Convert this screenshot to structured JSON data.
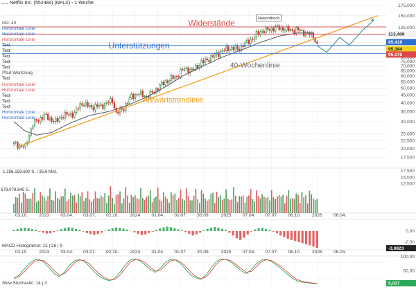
{
  "window": {
    "title": "Netflix Inc. (552484) (NFLX) - 1 Woche"
  },
  "overlay_labels": [
    {
      "text": "GD: 40",
      "color": "#444444"
    },
    {
      "text": "Horizontale Linie",
      "color": "#2f6fd0"
    },
    {
      "text": "Horizontale Linie",
      "color": "#2f6fd0"
    },
    {
      "text": "Horizontale Linie",
      "color": "#e04848"
    },
    {
      "text": "Text",
      "color": "#222222"
    },
    {
      "text": "Text",
      "color": "#222222"
    },
    {
      "text": "Text",
      "color": "#222222"
    },
    {
      "text": "Text",
      "color": "#222222"
    },
    {
      "text": "Text",
      "color": "#222222"
    },
    {
      "text": "Pfad-Werkzeug",
      "color": "#444444"
    },
    {
      "text": "Text",
      "color": "#222222"
    },
    {
      "text": "Horizontale Linie",
      "color": "#e04848"
    },
    {
      "text": "Horizontale Linie",
      "color": "#e04848"
    },
    {
      "text": "Text",
      "color": "#222222"
    },
    {
      "text": "Text",
      "color": "#222222"
    },
    {
      "text": "Text",
      "color": "#222222"
    },
    {
      "text": "Horizontale Linie",
      "color": "#2f6fd0"
    },
    {
      "text": "Horizontale Linie",
      "color": "#2f6fd0"
    }
  ],
  "annotations": {
    "resistance": "Widerstände",
    "support": "Unterstützungen",
    "ma_line": "40-Wochenlinie",
    "uptrend": "Aufwärtstrendlinie",
    "record_high": "Rekordhoch"
  },
  "price_badges": [
    {
      "text": "113,409",
      "bg": "#f3f3f3",
      "fg": "#222222"
    },
    {
      "text": "95,419",
      "bg": "#2f6fd0",
      "fg": "#ffffff"
    },
    {
      "text": "95,384",
      "bg": "#f2cf1f",
      "fg": "#222222"
    },
    {
      "text": "95,370",
      "bg": "#e04848",
      "fg": "#ffffff"
    }
  ],
  "volume_labels": {
    "total": "1.356.159.690 S. / 35,6 Mrd.",
    "current": "678.079.845 S."
  },
  "macd_label": "MACD Histogramm: 12 | 26 | 9",
  "macd_value_badge": "-3,0823",
  "stoch_label": "Slow Stochastic: 14 | 3",
  "stoch_value_badge": "5,027",
  "colors": {
    "up_candle": "#2a8a3e",
    "down_candle": "#d23a3a",
    "uptrend": "#f0a020",
    "ma": "#555566",
    "resistance": "#e04848",
    "support": "#2f6fd0",
    "grid": "#e6e6e6",
    "macd_up": "#2aa855",
    "macd_down": "#e04848",
    "stoch_k": "#2aa855",
    "stoch_d": "#e04848",
    "volume": "#a0a0a0"
  },
  "chart_data": [
    {
      "type": "candlestick",
      "title": "Netflix Inc. (552484) (NFLX) - 1 Woche",
      "y_scale": "log",
      "ylim": [
        15,
        175
      ],
      "y_ticks": [
        175,
        150,
        125,
        100,
        90,
        80,
        75,
        70,
        65,
        60,
        55,
        50,
        45,
        40,
        35,
        30,
        25,
        22.5,
        20,
        17.5
      ],
      "y_tick_labels": [
        "175,000",
        "150,000",
        "125,000",
        "100,000",
        "90,000",
        "80,000",
        "75,000",
        "70,000",
        "65,000",
        "60,000",
        "55,000",
        "50,000",
        "45,000",
        "40,000",
        "35,000",
        "30,000",
        "25,000",
        "22,500",
        "20,000",
        "17,500"
      ],
      "x_ticks": [
        "03.10.",
        "2023",
        "03.04.",
        "03.07.",
        "02.10.",
        "2024",
        "01.04.",
        "01.07.",
        "30.09.",
        "2025",
        "07.04.",
        "07.07.",
        "06.10.",
        "2026",
        "06.04."
      ],
      "close_path": [
        [
          0,
          21.5
        ],
        [
          6,
          20.4
        ],
        [
          10,
          29
        ],
        [
          16,
          33
        ],
        [
          22,
          30
        ],
        [
          26,
          33
        ],
        [
          32,
          34
        ],
        [
          36,
          40
        ],
        [
          40,
          37.5
        ],
        [
          46,
          38
        ],
        [
          52,
          41.5
        ],
        [
          54,
          34
        ],
        [
          58,
          37
        ],
        [
          62,
          44
        ],
        [
          66,
          46
        ],
        [
          70,
          44
        ],
        [
          74,
          47.5
        ],
        [
          78,
          53
        ],
        [
          82,
          57
        ],
        [
          86,
          60
        ],
        [
          90,
          67.5
        ],
        [
          94,
          65
        ],
        [
          98,
          72
        ],
        [
          102,
          77
        ],
        [
          106,
          82
        ],
        [
          110,
          88
        ],
        [
          114,
          92
        ],
        [
          118,
          90
        ],
        [
          122,
          98
        ],
        [
          126,
          106
        ],
        [
          130,
          118
        ],
        [
          134,
          121
        ],
        [
          138,
          125
        ],
        [
          142,
          124
        ],
        [
          146,
          120
        ],
        [
          150,
          121
        ],
        [
          154,
          115
        ],
        [
          158,
          111
        ],
        [
          160,
          95.4
        ]
      ],
      "ma40_path": [
        [
          0,
          30
        ],
        [
          6,
          26
        ],
        [
          12,
          24.5
        ],
        [
          20,
          25.5
        ],
        [
          30,
          29.5
        ],
        [
          40,
          33
        ],
        [
          50,
          35
        ],
        [
          60,
          38.5
        ],
        [
          70,
          43.5
        ],
        [
          80,
          51
        ],
        [
          90,
          61
        ],
        [
          100,
          70
        ],
        [
          110,
          80
        ],
        [
          120,
          89
        ],
        [
          130,
          100
        ],
        [
          140,
          110
        ],
        [
          150,
          115.5
        ],
        [
          158,
          115
        ]
      ],
      "projection_path": [
        [
          160,
          95.4
        ],
        [
          165,
          86
        ],
        [
          172,
          108
        ],
        [
          177,
          96
        ],
        [
          184,
          120
        ],
        [
          190,
          140
        ]
      ],
      "uptrend_line": [
        [
          2,
          20.5
        ],
        [
          192,
          150
        ]
      ],
      "resistance_levels": [
        126.5,
        113.4
      ],
      "support_levels": [
        95.419,
        84.5
      ],
      "record_high": 134,
      "annotations": [
        "Widerstände",
        "Unterstützungen",
        "40-Wochenlinie",
        "Aufwärtstrendlinie",
        "Rekordhoch"
      ]
    },
    {
      "type": "bar",
      "name": "Volumen",
      "ylim": [
        0,
        17500
      ],
      "y_ticks": [
        17500,
        15000,
        12500
      ],
      "y_tick_labels": [
        "17,500",
        "15,000",
        "12,500"
      ],
      "values_thousands": [
        8200,
        9100,
        7400,
        10600,
        8800,
        12200,
        9500,
        7800,
        11400,
        8600,
        9800,
        13100,
        8400,
        7600,
        10200,
        9200,
        11800,
        7900,
        8600,
        12600,
        9400,
        8100,
        10900,
        7700,
        9300,
        11200,
        8500,
        12300,
        7800,
        9600,
        10400,
        8700,
        11600,
        7600,
        9900,
        8300,
        12800,
        9100,
        8000,
        10700
      ]
    },
    {
      "type": "bar",
      "name": "MACD Histogramm: 12 | 26 | 9",
      "ylim": [
        -3.5,
        2
      ],
      "y_ticks": [
        0,
        -2
      ],
      "y_tick_labels": [
        "0,00",
        "-2,00"
      ],
      "values": [
        0.2,
        0.35,
        0.5,
        0.6,
        0.5,
        0.35,
        0.2,
        -0.1,
        -0.3,
        -0.45,
        -0.4,
        -0.2,
        0.1,
        0.35,
        0.55,
        0.7,
        0.6,
        0.4,
        0.2,
        -0.1,
        -0.35,
        -0.55,
        -0.7,
        -0.55,
        -0.3,
        0.05,
        0.3,
        0.5,
        0.65,
        0.6,
        0.45,
        0.25,
        0.05,
        -0.25,
        -0.5,
        -0.7,
        -0.6,
        -0.35,
        -0.1,
        0.2,
        0.45,
        0.65,
        0.8,
        0.7,
        0.5,
        0.3,
        0.1,
        -0.2,
        -0.5,
        -0.8,
        -0.6,
        -0.3,
        0.1,
        0.4,
        0.6,
        0.75,
        0.6,
        0.4,
        0.2,
        -0.3,
        -0.8,
        -1.3,
        -1.6,
        -1.2,
        -0.6,
        -0.1,
        0.3,
        0.5,
        0.6,
        0.4,
        0.2,
        -0.1,
        -0.4,
        -0.8,
        -1.1,
        -1.4,
        -1.6,
        -1.8,
        -2.0,
        -2.2,
        -2.4,
        -2.6,
        -2.8,
        -3.08
      ]
    },
    {
      "type": "line",
      "name": "Slow Stochastic: 14 | 3",
      "ylim": [
        0,
        100
      ],
      "y_ticks": [
        100,
        50,
        0
      ],
      "y_tick_labels": [
        "100,00",
        "50,00",
        "0,00"
      ],
      "series": [
        {
          "name": "%K",
          "values": [
            20,
            35,
            55,
            75,
            88,
            90,
            80,
            60,
            40,
            30,
            45,
            70,
            85,
            90,
            82,
            65,
            45,
            30,
            20,
            15,
            25,
            45,
            70,
            88,
            92,
            85,
            70,
            55,
            45,
            60,
            80,
            90,
            88,
            75,
            55,
            35,
            25,
            20,
            35,
            60,
            82,
            92,
            90,
            80,
            65,
            50,
            40,
            55,
            75,
            88,
            90,
            82,
            70,
            55,
            40,
            25,
            15,
            10,
            8,
            6,
            5
          ]
        },
        {
          "name": "%D",
          "values": [
            25,
            30,
            45,
            65,
            82,
            88,
            85,
            70,
            50,
            35,
            40,
            58,
            78,
            88,
            86,
            74,
            55,
            38,
            25,
            18,
            20,
            35,
            58,
            80,
            90,
            88,
            78,
            62,
            50,
            52,
            70,
            85,
            89,
            82,
            65,
            45,
            30,
            22,
            28,
            48,
            72,
            88,
            91,
            85,
            72,
            58,
            45,
            48,
            65,
            82,
            89,
            86,
            76,
            62,
            48,
            32,
            20,
            13,
            10,
            7,
            6
          ]
        }
      ]
    }
  ]
}
